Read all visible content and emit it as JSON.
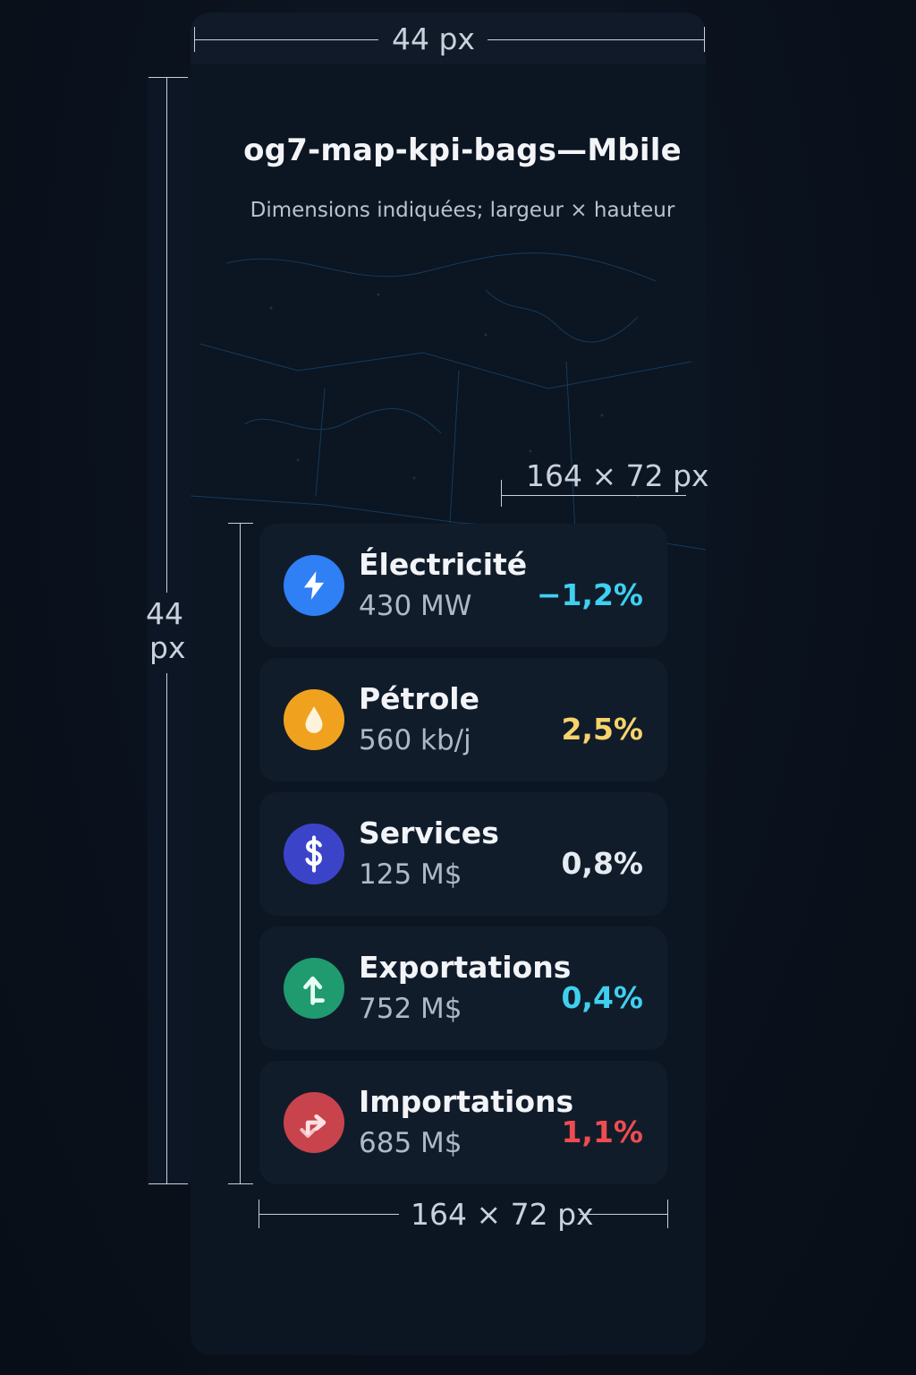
{
  "header": {
    "title": "og7-map-kpi-bags—Mbile",
    "subtitle": "Dimensions indiquées; largeur × hauteur"
  },
  "annotations": {
    "top_width": "44 px",
    "left_height_value": "44",
    "left_height_unit": "px",
    "card_size_top": "164 × 72 px",
    "card_size_bottom": "164 × 72 px"
  },
  "kpis": [
    {
      "label": "Électricité",
      "value": "430 MW",
      "change": "−1,2%",
      "icon": "lightning-icon",
      "icon_color": "#2f7ff5",
      "change_color": "#3fd0f0"
    },
    {
      "label": "Pétrole",
      "value": "560 kb/j",
      "change": "2,5%",
      "icon": "oil-drop-icon",
      "icon_color": "#f0a21e",
      "change_color": "#f6d36b"
    },
    {
      "label": "Services",
      "value": "125 M$",
      "change": "0,8%",
      "icon": "dollar-icon",
      "icon_color": "#3b44c9",
      "change_color": "#e6ebf2"
    },
    {
      "label": "Exportations",
      "value": "752 M$",
      "change": "0,4%",
      "icon": "export-arrow-icon",
      "icon_color": "#1f9b6f",
      "change_color": "#3fd0f0"
    },
    {
      "label": "Importations",
      "value": "685 M$",
      "change": "1,1%",
      "icon": "import-arrow-icon",
      "icon_color": "#c9434c",
      "change_color": "#ef4c50"
    }
  ]
}
